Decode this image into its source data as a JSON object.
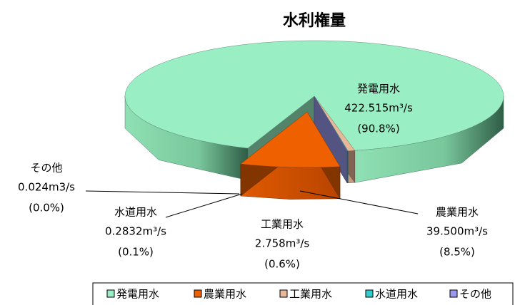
{
  "chart_data": {
    "type": "pie",
    "title": "水利権量",
    "categories": [
      "発電用水",
      "農業用水",
      "工業用水",
      "水道用水",
      "その他"
    ],
    "values": [
      422.515,
      39.5,
      2.758,
      0.2832,
      0.024
    ],
    "value_labels": [
      "422.515m³/s",
      "39.500m³/s",
      "2.758m³/s",
      "0.2832m³/s",
      "0.024m3/s"
    ],
    "percents": [
      90.8,
      8.5,
      0.6,
      0.1,
      0.0
    ],
    "percent_labels": [
      "(90.8%)",
      "(8.5%)",
      "(0.6%)",
      "(0.1%)",
      "(0.0%)"
    ],
    "colors": [
      "#99eec4",
      "#ee6000",
      "#e8b898",
      "#33cccc",
      "#9999ee"
    ],
    "exploded": "農業用水",
    "legend": "bottom"
  }
}
